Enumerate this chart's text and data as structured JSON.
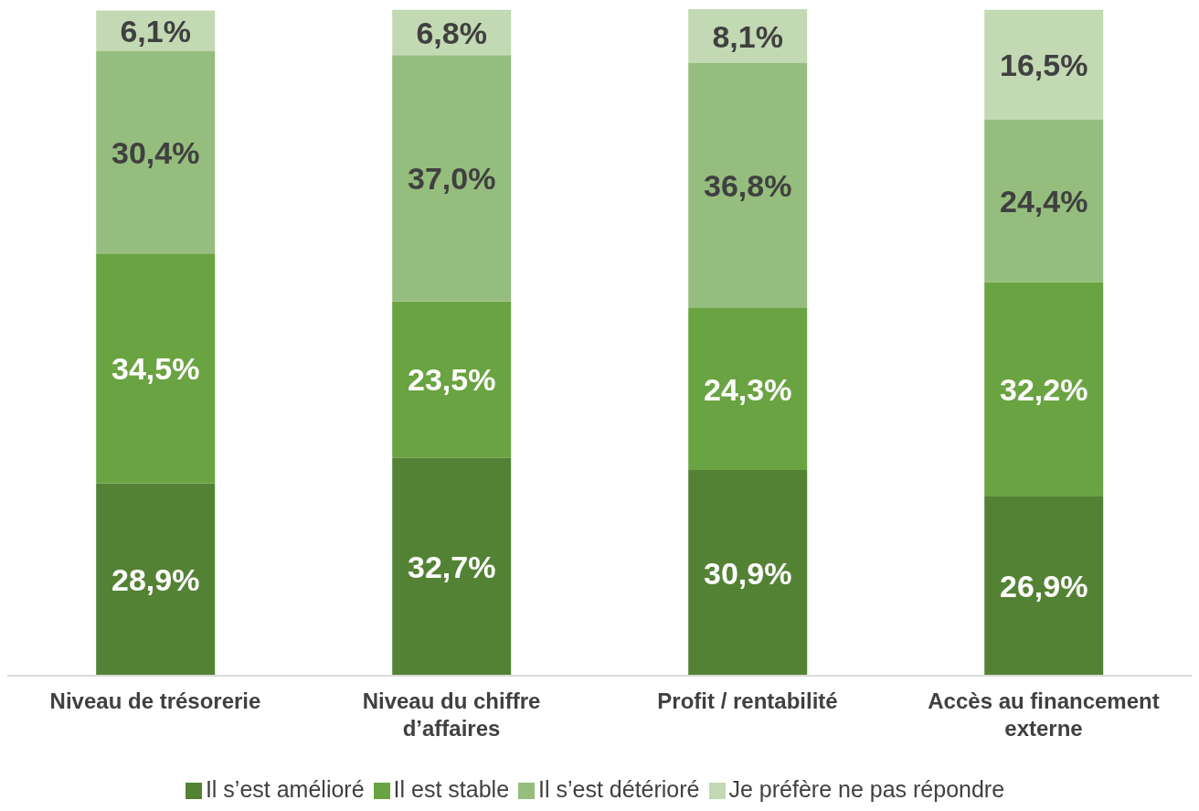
{
  "chart_data": {
    "type": "bar",
    "stacked": true,
    "categories": [
      "Niveau de trésorerie",
      "Niveau du chiffre d’affaires",
      "Profit / rentabilité",
      "Accès au financement externe"
    ],
    "series": [
      {
        "name": "Il s’est amélioré",
        "color": "#548235",
        "values": [
          28.9,
          32.7,
          30.9,
          26.9
        ],
        "value_labels": [
          "28,9%",
          "32,7%",
          "30,9%",
          "26,9%"
        ]
      },
      {
        "name": "Il est stable",
        "color": "#6aa341",
        "values": [
          34.5,
          23.5,
          24.3,
          32.2
        ],
        "value_labels": [
          "34,5%",
          "23,5%",
          "24,3%",
          "32,2%"
        ]
      },
      {
        "name": "Il s’est détérioré",
        "color": "#95bd7d",
        "values": [
          30.4,
          37.0,
          36.8,
          24.4
        ],
        "value_labels": [
          "30,4%",
          "37,0%",
          "36,8%",
          "24,4%"
        ]
      },
      {
        "name": "Je préfère ne pas répondre",
        "color": "#c2d9b3",
        "values": [
          6.1,
          6.8,
          8.1,
          16.5
        ],
        "value_labels": [
          "6,1%",
          "6,8%",
          "8,1%",
          "16,5%"
        ]
      }
    ],
    "legend": "bottom"
  }
}
